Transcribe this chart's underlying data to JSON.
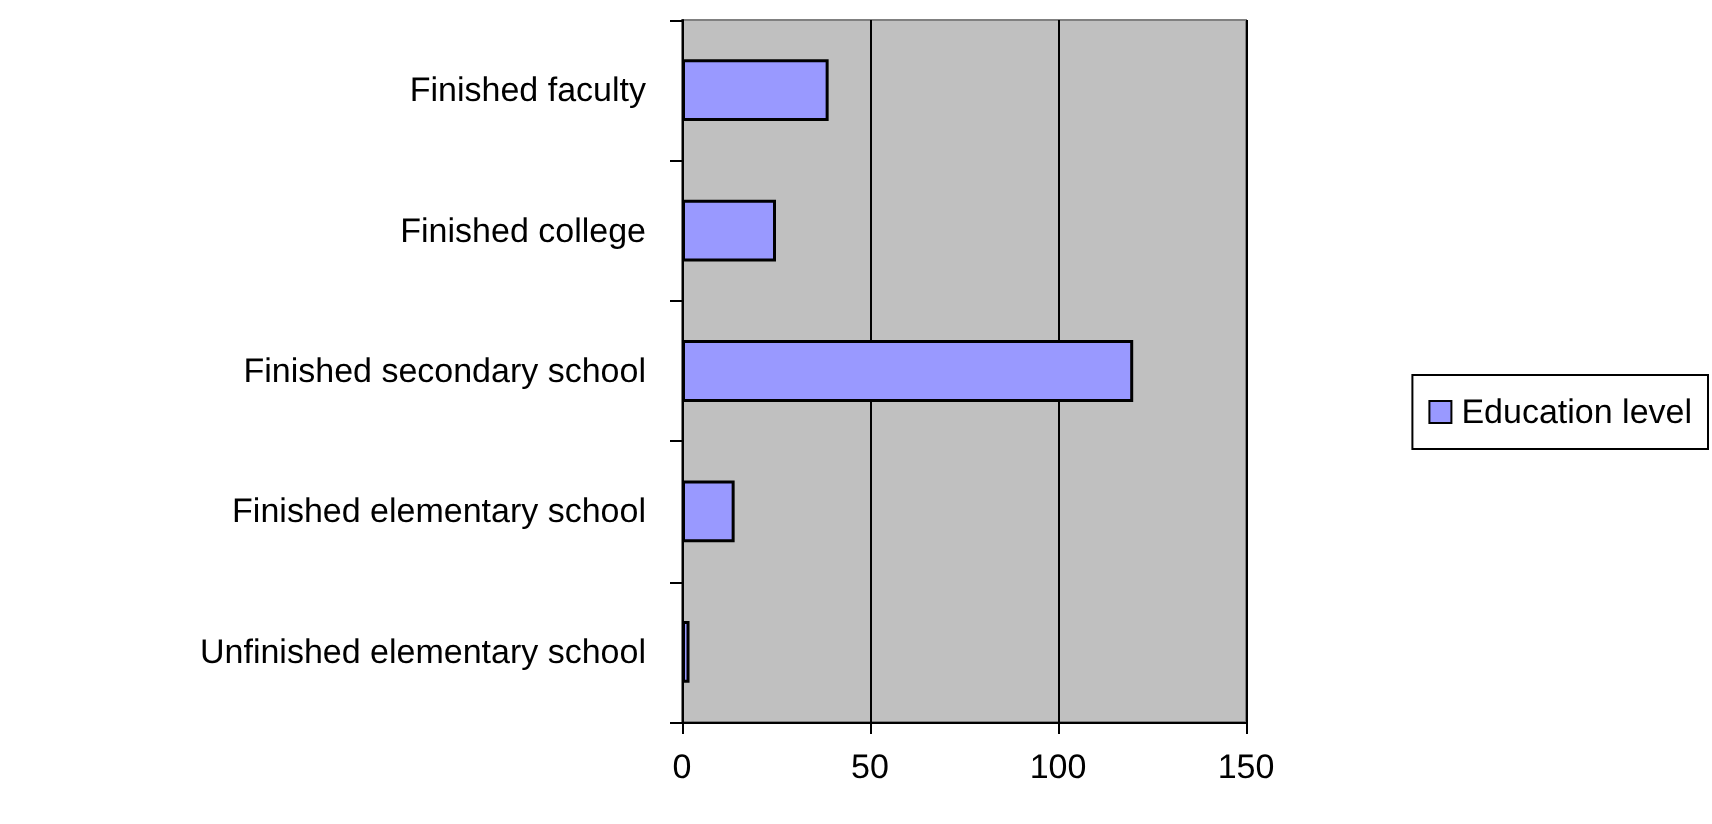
{
  "chart_data": {
    "type": "bar",
    "orientation": "horizontal",
    "categories": [
      "Finished faculty",
      "Finished college",
      "Finished secondary school",
      "Finished elementary school",
      "Unfinished elementary school"
    ],
    "series": [
      {
        "name": "Education level",
        "color": "#9999ff",
        "values": [
          39,
          25,
          120,
          14,
          2
        ]
      }
    ],
    "xlim": [
      0,
      150
    ],
    "xticks": [
      0,
      50,
      100,
      150
    ],
    "grid": "x",
    "legend": "right"
  }
}
